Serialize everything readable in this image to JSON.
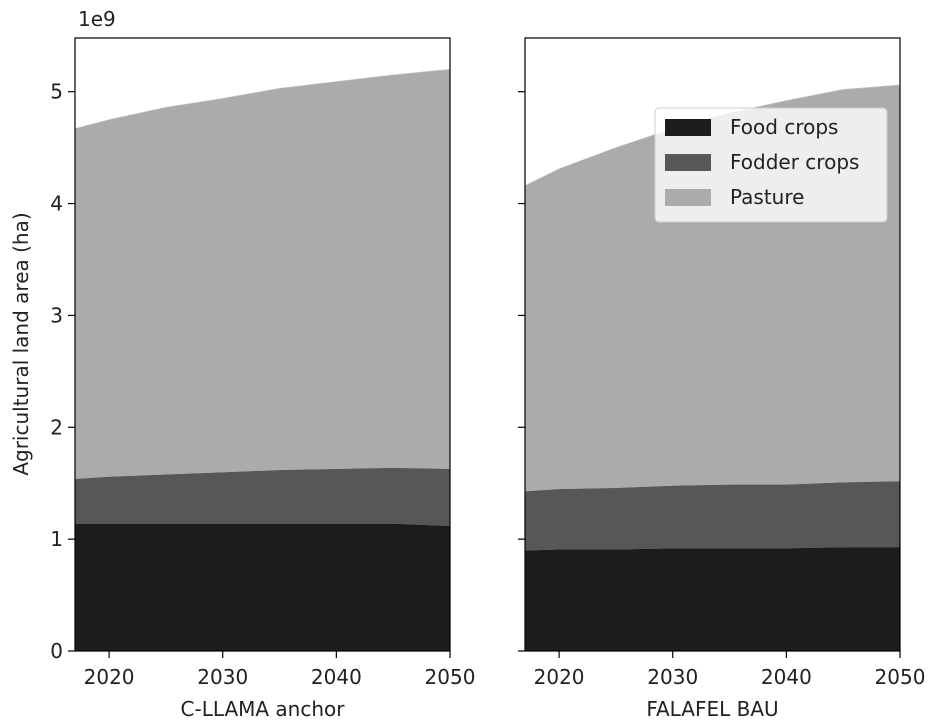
{
  "figure": {
    "ylabel": "Agricultural land area (ha)",
    "yscale_label": "1e9"
  },
  "chart_data": [
    {
      "type": "area",
      "stacked": true,
      "xlabel": "C-LLAMA anchor",
      "ylabel": "Agricultural land area (ha)",
      "y_multiplier": "1e9",
      "xlim": [
        2017,
        2050
      ],
      "ylim": [
        0,
        5.48
      ],
      "xticks": [
        2020,
        2030,
        2040,
        2050
      ],
      "yticks": [
        0,
        1,
        2,
        3,
        4,
        5
      ],
      "x": [
        2017,
        2020,
        2025,
        2030,
        2035,
        2040,
        2045,
        2050
      ],
      "series": [
        {
          "name": "Food crops",
          "color": "#1c1c1c",
          "values": [
            1.14,
            1.14,
            1.14,
            1.14,
            1.14,
            1.14,
            1.14,
            1.12
          ]
        },
        {
          "name": "Fodder crops",
          "color": "#575757",
          "values": [
            0.4,
            0.42,
            0.44,
            0.46,
            0.48,
            0.49,
            0.5,
            0.51
          ]
        },
        {
          "name": "Pasture",
          "color": "#ababab",
          "values": [
            3.13,
            3.19,
            3.28,
            3.34,
            3.41,
            3.46,
            3.51,
            3.57
          ]
        }
      ]
    },
    {
      "type": "area",
      "stacked": true,
      "xlabel": "FALAFEL BAU",
      "ylabel": "",
      "y_multiplier": "1e9",
      "xlim": [
        2017,
        2050
      ],
      "ylim": [
        0,
        5.48
      ],
      "xticks": [
        2020,
        2030,
        2040,
        2050
      ],
      "yticks": [
        0,
        1,
        2,
        3,
        4,
        5
      ],
      "legend_position": "upper-right",
      "x": [
        2017,
        2020,
        2025,
        2030,
        2035,
        2040,
        2045,
        2050
      ],
      "series": [
        {
          "name": "Food crops",
          "color": "#1c1c1c",
          "values": [
            0.9,
            0.91,
            0.91,
            0.92,
            0.92,
            0.92,
            0.93,
            0.93
          ]
        },
        {
          "name": "Fodder crops",
          "color": "#575757",
          "values": [
            0.53,
            0.54,
            0.55,
            0.56,
            0.57,
            0.57,
            0.58,
            0.59
          ]
        },
        {
          "name": "Pasture",
          "color": "#ababab",
          "values": [
            2.73,
            2.86,
            3.04,
            3.19,
            3.32,
            3.43,
            3.51,
            3.54
          ]
        }
      ]
    }
  ]
}
